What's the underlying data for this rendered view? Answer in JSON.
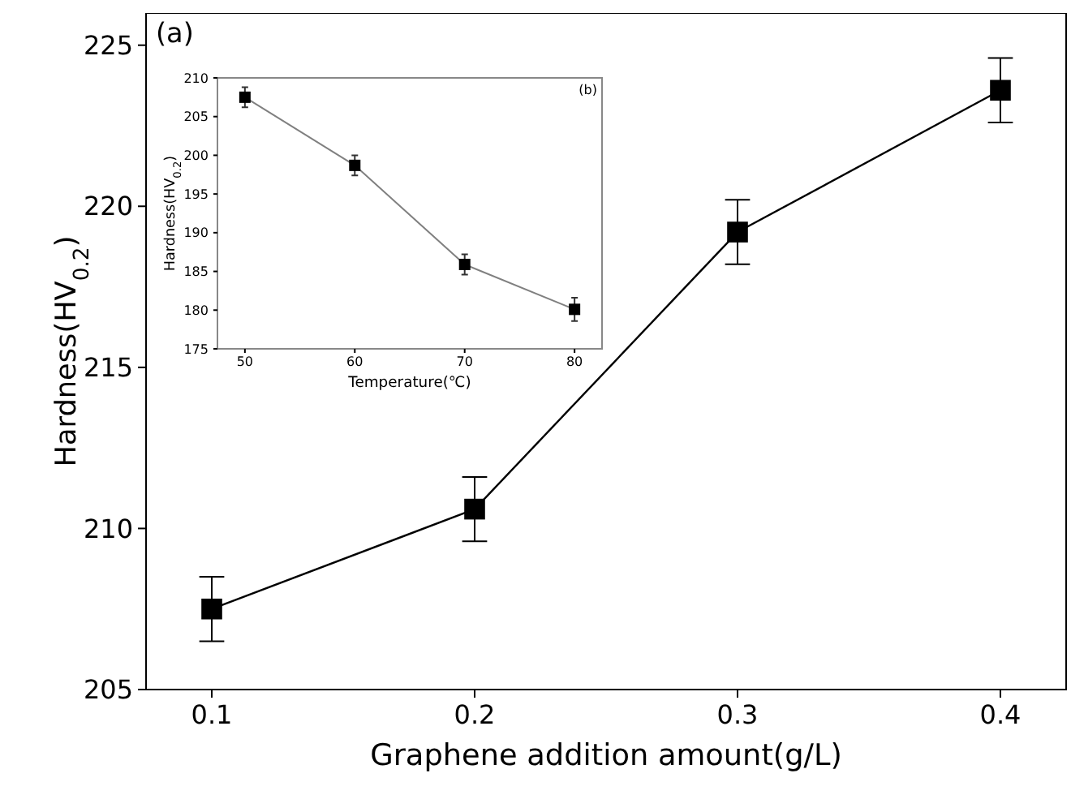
{
  "chart_data": [
    {
      "type": "line",
      "xlabel": "Graphene addition amount(g/L)",
      "ylabel": "Hardness(HV$_{0.2}$)",
      "annotations": [
        "(a)"
      ],
      "x": [
        0.1,
        0.2,
        0.3,
        0.4
      ],
      "series": [
        {
          "color": "#000000",
          "values": [
            207.5,
            210.6,
            219.2,
            223.6
          ],
          "errors": [
            1,
            1,
            1,
            1
          ]
        }
      ],
      "xlim": [
        0.075,
        0.425
      ],
      "xticks": [
        0.1,
        0.2,
        0.3,
        0.4
      ],
      "ylim": [
        205,
        226
      ],
      "yticks": [
        205,
        210,
        215,
        220,
        225
      ],
      "marker": "square",
      "line_style": "solid",
      "grid": false
    },
    {
      "type": "line",
      "xlabel": "Temperature(℃)",
      "ylabel": "Hardness(HV$_{0.2}$)",
      "annotations": [
        "(b)"
      ],
      "x": [
        50,
        60,
        70,
        80
      ],
      "series": [
        {
          "color": "#808080",
          "values": [
            207.5,
            198.7,
            185.9,
            180.1
          ],
          "errors": [
            1.3,
            1.3,
            1.3,
            1.5
          ]
        }
      ],
      "xlim": [
        47.5,
        82.5
      ],
      "xticks": [
        50,
        60,
        70,
        80
      ],
      "ylim": [
        175,
        210
      ],
      "yticks": [
        175,
        180,
        185,
        190,
        195,
        200,
        205,
        210
      ],
      "marker": "square",
      "line_style": "solid",
      "grid": false
    }
  ]
}
